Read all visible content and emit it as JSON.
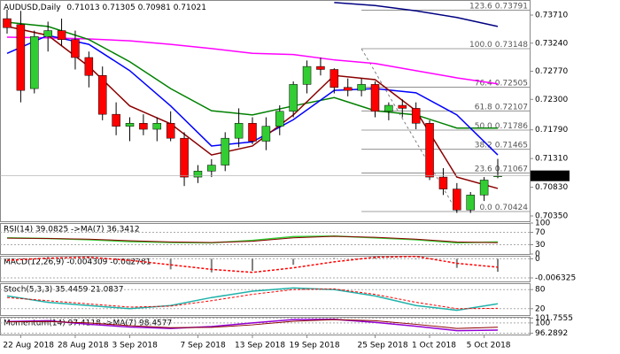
{
  "chart_data": {
    "type": "candlestick",
    "symbol": "AUDUSD,Daily",
    "categories": [
      null,
      "22 Aug 2018",
      null,
      null,
      null,
      "28 Aug 2018",
      null,
      null,
      null,
      "3 Sep 2018",
      null,
      null,
      null,
      null,
      "7 Sep 2018",
      null,
      null,
      null,
      "13 Sep 2018",
      null,
      null,
      null,
      "19 Sep 2018",
      null,
      null,
      null,
      null,
      "25 Sep 2018",
      null,
      null,
      null,
      "1 Oct 2018",
      null,
      null,
      null,
      "5 Oct 2018",
      null
    ],
    "candles": [
      {
        "open": 0.7365,
        "high": 0.738,
        "low": 0.734,
        "close": 0.735
      },
      {
        "open": 0.7355,
        "high": 0.7378,
        "low": 0.7225,
        "close": 0.7245
      },
      {
        "open": 0.7248,
        "high": 0.7345,
        "low": 0.724,
        "close": 0.7335
      },
      {
        "open": 0.7335,
        "high": 0.736,
        "low": 0.731,
        "close": 0.7345
      },
      {
        "open": 0.7345,
        "high": 0.7365,
        "low": 0.732,
        "close": 0.733
      },
      {
        "open": 0.733,
        "high": 0.7345,
        "low": 0.728,
        "close": 0.73
      },
      {
        "open": 0.73,
        "high": 0.731,
        "low": 0.725,
        "close": 0.727
      },
      {
        "open": 0.727,
        "high": 0.7285,
        "low": 0.7195,
        "close": 0.7205
      },
      {
        "open": 0.7205,
        "high": 0.7225,
        "low": 0.717,
        "close": 0.7185
      },
      {
        "open": 0.7185,
        "high": 0.72,
        "low": 0.716,
        "close": 0.719
      },
      {
        "open": 0.719,
        "high": 0.7205,
        "low": 0.717,
        "close": 0.718
      },
      {
        "open": 0.718,
        "high": 0.72,
        "low": 0.716,
        "close": 0.719
      },
      {
        "open": 0.719,
        "high": 0.721,
        "low": 0.716,
        "close": 0.7165
      },
      {
        "open": 0.7165,
        "high": 0.7175,
        "low": 0.7085,
        "close": 0.71
      },
      {
        "open": 0.71,
        "high": 0.712,
        "low": 0.709,
        "close": 0.711
      },
      {
        "open": 0.711,
        "high": 0.713,
        "low": 0.71,
        "close": 0.712
      },
      {
        "open": 0.712,
        "high": 0.7175,
        "low": 0.711,
        "close": 0.7165
      },
      {
        "open": 0.7165,
        "high": 0.7215,
        "low": 0.715,
        "close": 0.719
      },
      {
        "open": 0.719,
        "high": 0.72,
        "low": 0.7155,
        "close": 0.716
      },
      {
        "open": 0.716,
        "high": 0.72,
        "low": 0.7145,
        "close": 0.7185
      },
      {
        "open": 0.7185,
        "high": 0.722,
        "low": 0.717,
        "close": 0.721
      },
      {
        "open": 0.721,
        "high": 0.726,
        "low": 0.72,
        "close": 0.7255
      },
      {
        "open": 0.7255,
        "high": 0.7295,
        "low": 0.724,
        "close": 0.7285
      },
      {
        "open": 0.7285,
        "high": 0.73,
        "low": 0.727,
        "close": 0.728
      },
      {
        "open": 0.728,
        "high": 0.7282,
        "low": 0.724,
        "close": 0.725
      },
      {
        "open": 0.725,
        "high": 0.7265,
        "low": 0.7235,
        "close": 0.7245
      },
      {
        "open": 0.7245,
        "high": 0.7265,
        "low": 0.7235,
        "close": 0.7255
      },
      {
        "open": 0.7255,
        "high": 0.726,
        "low": 0.72,
        "close": 0.721
      },
      {
        "open": 0.721,
        "high": 0.7225,
        "low": 0.7195,
        "close": 0.722
      },
      {
        "open": 0.722,
        "high": 0.723,
        "low": 0.72,
        "close": 0.7215
      },
      {
        "open": 0.7215,
        "high": 0.7225,
        "low": 0.718,
        "close": 0.719
      },
      {
        "open": 0.719,
        "high": 0.7195,
        "low": 0.7095,
        "close": 0.71
      },
      {
        "open": 0.71,
        "high": 0.7115,
        "low": 0.707,
        "close": 0.708
      },
      {
        "open": 0.708,
        "high": 0.709,
        "low": 0.704,
        "close": 0.7045
      },
      {
        "open": 0.7045,
        "high": 0.7075,
        "low": 0.704,
        "close": 0.707
      },
      {
        "open": 0.707,
        "high": 0.71,
        "low": 0.706,
        "close": 0.7095
      },
      {
        "open": 0.71013,
        "high": 0.71305,
        "low": 0.70981,
        "close": 0.71021
      }
    ],
    "bull_color": "#32cd32",
    "bear_color": "#ff0000",
    "ylim": [
      0.70261,
      0.73962
    ],
    "yticks": [
      {
        "value": 0.7371,
        "label": "0.73710"
      },
      {
        "value": 0.7324,
        "label": "0.73240"
      },
      {
        "value": 0.7277,
        "label": "0.72770"
      },
      {
        "value": 0.723,
        "label": "0.72300"
      },
      {
        "value": 0.7179,
        "label": "0.71790"
      },
      {
        "value": 0.7131,
        "label": "0.71310"
      },
      {
        "value": 0.7083,
        "label": "0.70830"
      },
      {
        "value": 0.7035,
        "label": "0.70350"
      }
    ],
    "fibonacci": {
      "color": "#808080",
      "levels": [
        {
          "ratio": "123.6",
          "price": 0.73791
        },
        {
          "ratio": "100.0",
          "price": 0.73148
        },
        {
          "ratio": "76.4",
          "price": 0.72505
        },
        {
          "ratio": "61.8",
          "price": 0.72107
        },
        {
          "ratio": "50.0",
          "price": 0.71786
        },
        {
          "ratio": "38.2",
          "price": 0.71465
        },
        {
          "ratio": "23.6",
          "price": 0.71067
        },
        {
          "ratio": "0.0",
          "price": 0.70424
        }
      ]
    },
    "indicator_x": [
      0,
      3,
      6,
      9,
      12,
      15,
      18,
      21,
      24,
      27,
      30,
      33,
      36
    ],
    "overlays": [
      {
        "color": "#ff00ff",
        "values": [
          0.7334,
          0.7333,
          0.7331,
          0.7328,
          0.7322,
          0.7315,
          0.7307,
          0.7305,
          0.7296,
          0.729,
          0.7278,
          0.7266,
          0.7256
        ]
      },
      {
        "color": "#000080",
        "values": [
          null,
          null,
          null,
          null,
          null,
          null,
          null,
          null,
          0.7392,
          0.7387,
          0.7378,
          0.7367,
          0.7352
        ]
      },
      {
        "color": "#008000",
        "values": [
          0.7359,
          0.7352,
          0.733,
          0.7293,
          0.7248,
          0.7211,
          0.7204,
          0.7219,
          0.7233,
          0.7211,
          0.7204,
          0.7182,
          0.7182
        ]
      },
      {
        "color": "#0000ff",
        "values": [
          0.7307,
          0.7337,
          0.7322,
          0.7278,
          0.7219,
          0.7152,
          0.7159,
          0.7196,
          0.7245,
          0.7248,
          0.7241,
          0.7204,
          0.7137
        ]
      },
      {
        "color": "#8b0000",
        "values": [
          0.7352,
          0.7337,
          0.7285,
          0.7219,
          0.7189,
          0.7137,
          0.7152,
          0.7204,
          0.727,
          0.7263,
          0.7211,
          0.71,
          0.7081
        ]
      }
    ],
    "panes": [
      {
        "label": "RSI(14) 39.0825 ->MA(7) 36.3412",
        "ylim": [
          0,
          100
        ],
        "yticks": [
          100,
          70,
          30,
          0
        ],
        "series": [
          {
            "color": "#32cd32",
            "values": [
              52,
              50,
              46,
              40,
              37,
              36,
              44,
              56,
              58,
              52,
              46,
              36,
              39.0825
            ]
          },
          {
            "color": "#8b0000",
            "values": [
              51,
              50,
              48,
              43,
              39,
              37,
              41,
              52,
              57,
              54,
              48,
              39,
              36.3412
            ]
          }
        ]
      },
      {
        "label": "MACD(12,26,9) -0.004309 -0.002781",
        "ylim": [
          -0.0075,
          0.001
        ],
        "yticks": [
          0,
          -0.006325
        ],
        "histogram": {
          "color": "#808080",
          "values": [
            0.0002,
            0.0006,
            0.0003,
            -0.002,
            -0.0035,
            -0.0045,
            -0.004,
            -0.002,
            0.0003,
            0.0008,
            -0.0002,
            -0.003,
            -0.004309
          ]
        },
        "series": [
          {
            "color": "#ff0000",
            "dashed": true,
            "values": [
              -0.0005,
              0.0002,
              0.0005,
              -0.0005,
              -0.002,
              -0.0035,
              -0.0045,
              -0.003,
              -0.001,
              0.0005,
              0.0008,
              -0.0015,
              -0.002781
            ]
          }
        ]
      },
      {
        "label": "Stoch(5,3,3) 35.4459 21.0837",
        "ylim": [
          0,
          100
        ],
        "yticks": [
          80,
          20
        ],
        "series": [
          {
            "color": "#20b2aa",
            "values": [
              60,
              40,
              30,
              20,
              30,
              55,
              75,
              85,
              80,
              60,
              30,
              15,
              35.4459
            ]
          },
          {
            "color": "#ff0000",
            "dashed": true,
            "values": [
              55,
              45,
              35,
              25,
              28,
              45,
              65,
              80,
              82,
              65,
              40,
              20,
              21.0837
            ]
          }
        ]
      },
      {
        "label": "Momentum(14) 97.4118 ->MA(7) 98.4577",
        "ylim": [
          95.8,
          102.2
        ],
        "yticks": [
          101.7555,
          100,
          96.2892
        ],
        "series": [
          {
            "color": "#9400d3",
            "values": [
              100.5,
              100.8,
              99.5,
              98.5,
              98,
              98.7,
              100,
              101.2,
              101.3,
              100.2,
              98.8,
              97.2,
              97.4118
            ]
          },
          {
            "color": "#8b0000",
            "values": [
              100.4,
              100.5,
              100,
              99,
              98.3,
              98.4,
              99.3,
              100.6,
              101.2,
              100.8,
              99.5,
              98,
              98.4577
            ]
          }
        ]
      }
    ]
  }
}
